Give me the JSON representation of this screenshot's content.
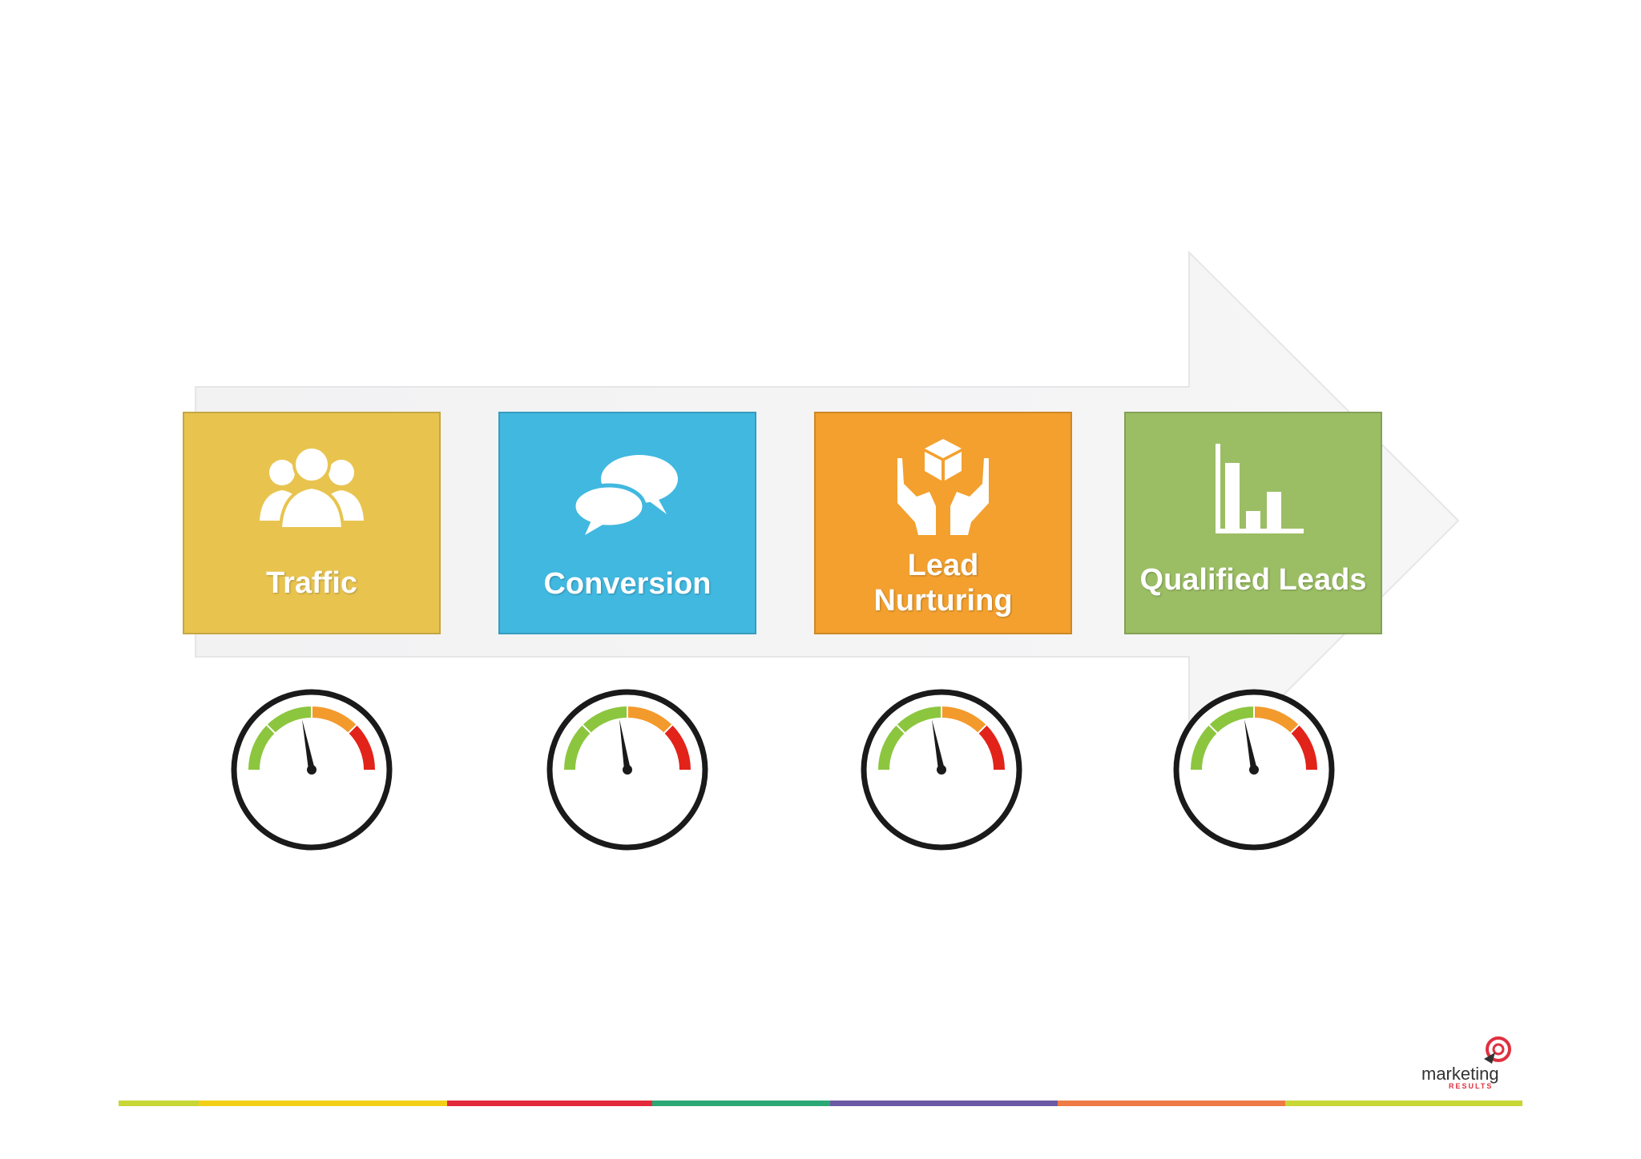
{
  "stages": [
    {
      "label": "Traffic",
      "color": "#e8c44f",
      "icon": "people-icon",
      "gauge_level": 0.44
    },
    {
      "label": "Conversion",
      "color": "#41b8e0",
      "icon": "speech-bubbles-icon",
      "gauge_level": 0.45
    },
    {
      "label": "Lead\nNurturing",
      "color": "#f3a02e",
      "icon": "hands-box-icon",
      "gauge_level": 0.44
    },
    {
      "label": "Qualified Leads",
      "color": "#9bbe64",
      "icon": "bar-chart-icon",
      "gauge_level": 0.44
    }
  ],
  "gauge_colors": {
    "green": "#8cc63f",
    "orange": "#f39a2c",
    "red": "#e2231a"
  },
  "arrow_color": "#f2f2f3",
  "footer_bar_colors": [
    "#c8d636",
    "#f3d018",
    "#e32a3c",
    "#2aa876",
    "#6c59a4",
    "#ee7a45",
    "#c8d636"
  ],
  "logo": {
    "word": "marketing",
    "sub": "RESULTS",
    "color": "#e03040"
  }
}
